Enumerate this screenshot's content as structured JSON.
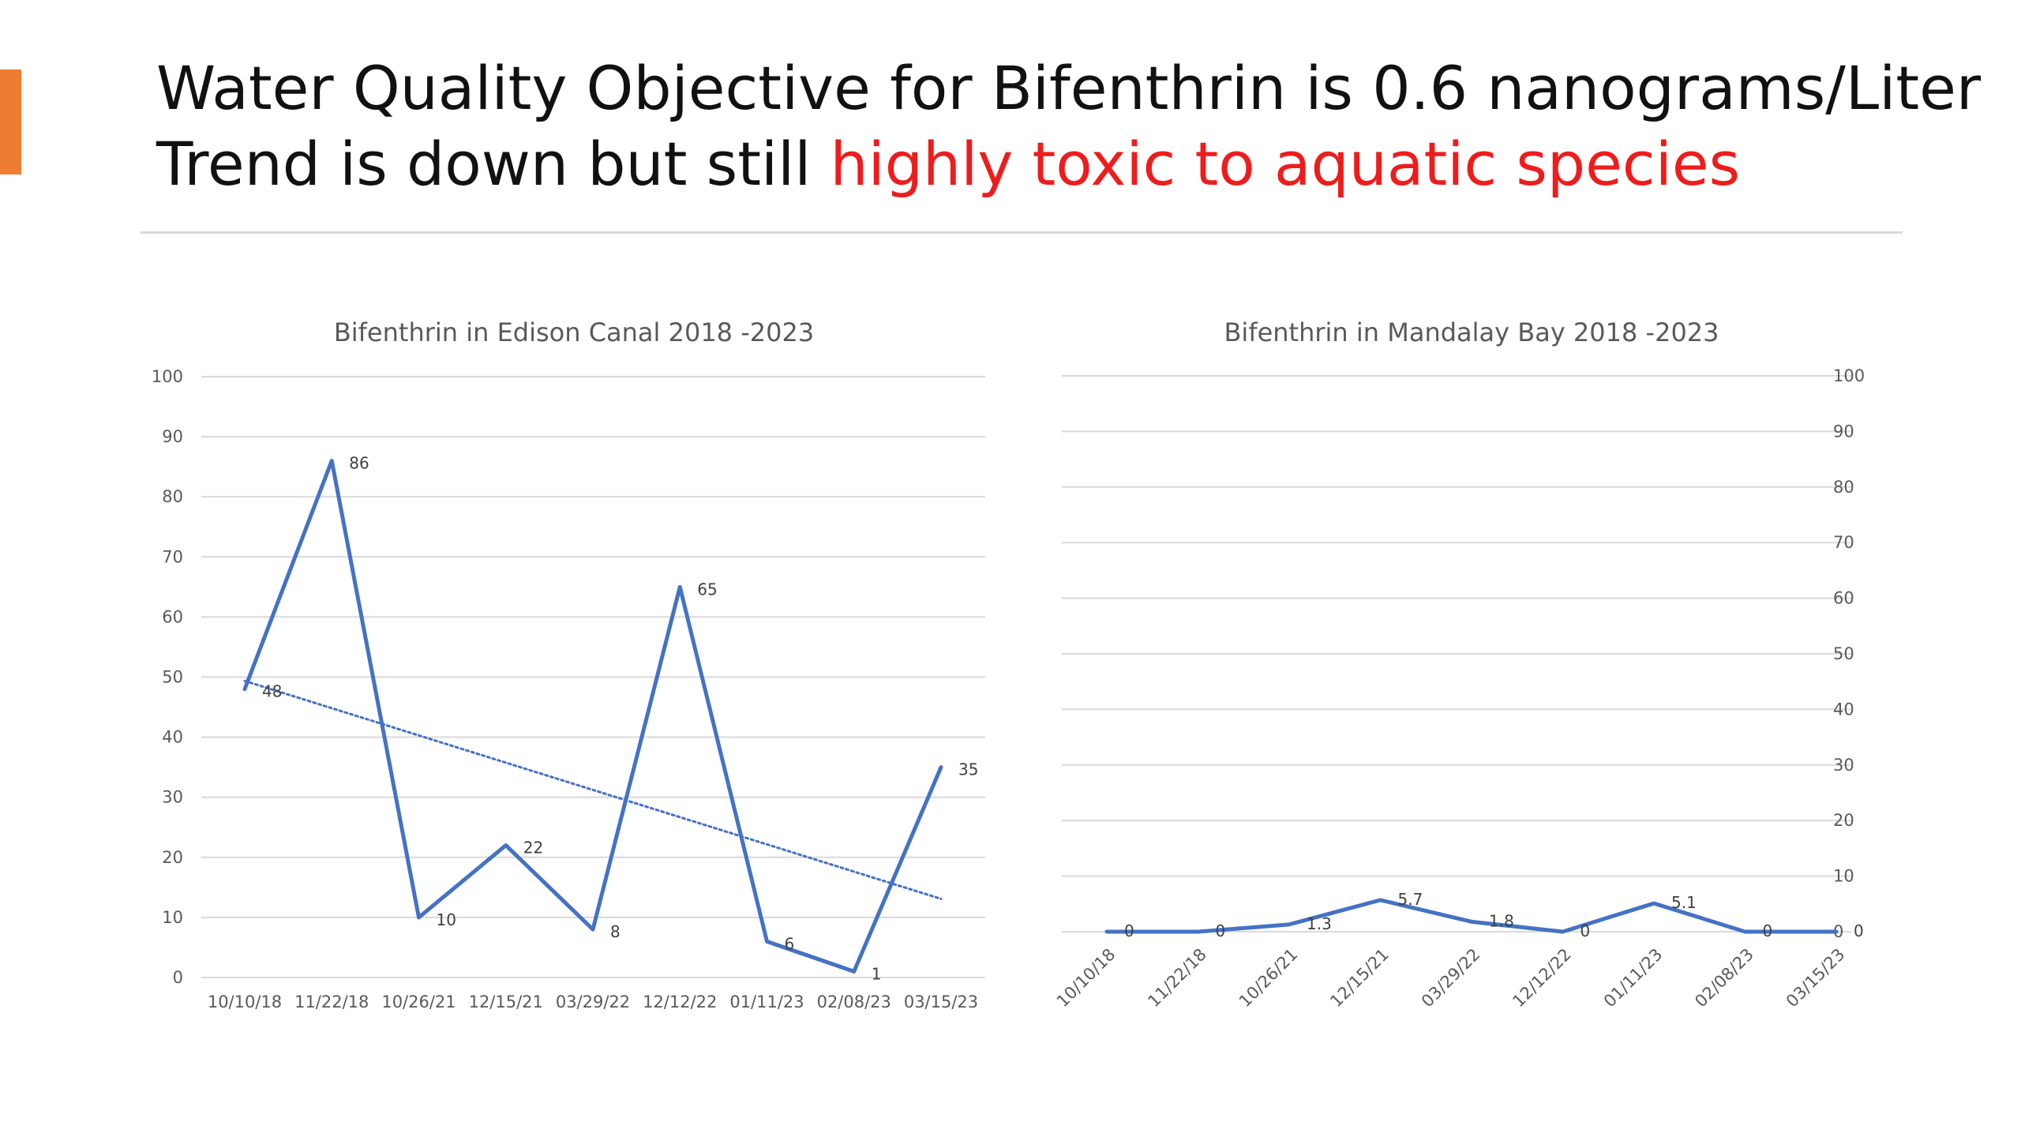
{
  "slide": {
    "title_line1": "Water Quality Objective for Bifenthrin is 0.6 nanograms/Liter",
    "title_line2_prefix": "Trend is down but still ",
    "title_line2_highlight": "highly toxic to aquatic species"
  },
  "colors": {
    "accent": "#ED7D31",
    "series": "#4472C4",
    "highlight": "#EE1C1C",
    "grid": "#D9D9D9",
    "axis_text": "#595959"
  },
  "chart_data": [
    {
      "type": "line",
      "title": "Bifenthrin in Edison Canal 2018 -2023",
      "categories": [
        "10/10/18",
        "11/22/18",
        "10/26/21",
        "12/15/21",
        "03/29/22",
        "12/12/22",
        "01/11/23",
        "02/08/23",
        "03/15/23"
      ],
      "series": [
        {
          "values": [
            48,
            86,
            10,
            22,
            8,
            65,
            6,
            1,
            35
          ],
          "data_labels": true
        }
      ],
      "trendline": {
        "type": "linear",
        "style": "dotted"
      },
      "ylim": [
        0,
        100
      ],
      "ytick_step": 10,
      "y_axis_side": "left",
      "x_label_rotation": 0,
      "grid": true,
      "legend": "none",
      "xlabel": "",
      "ylabel": ""
    },
    {
      "type": "line",
      "title": "Bifenthrin in Mandalay Bay 2018 -2023",
      "categories": [
        "10/10/18",
        "11/22/18",
        "10/26/21",
        "12/15/21",
        "03/29/22",
        "12/12/22",
        "01/11/23",
        "02/08/23",
        "03/15/23"
      ],
      "series": [
        {
          "values": [
            0,
            0,
            1.3,
            5.7,
            1.8,
            0,
            5.1,
            0,
            0
          ],
          "data_labels": true
        }
      ],
      "ylim": [
        0,
        100
      ],
      "ytick_step": 10,
      "y_axis_side": "right",
      "x_label_rotation": -45,
      "grid": true,
      "legend": "none",
      "xlabel": "",
      "ylabel": ""
    }
  ]
}
